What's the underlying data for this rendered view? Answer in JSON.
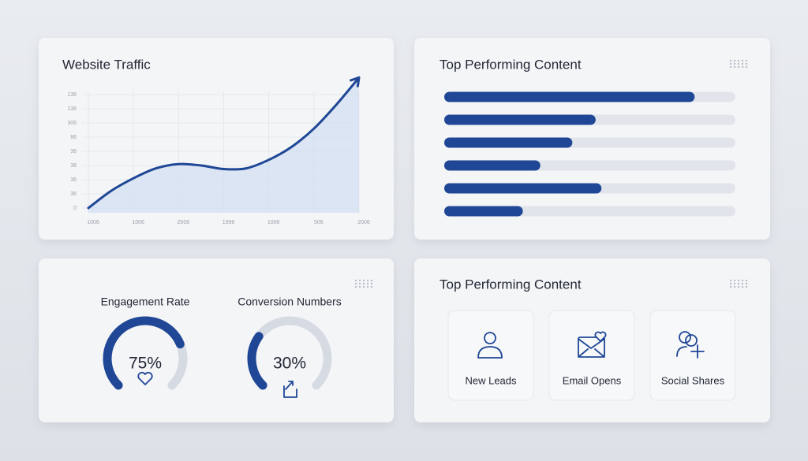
{
  "chart_data": [
    {
      "type": "line",
      "title": "Website Traffic",
      "x": [
        0,
        0.5,
        1,
        1.5,
        2,
        2.5,
        3,
        3.5,
        4,
        4.5,
        5,
        5.5,
        6
      ],
      "values": [
        0,
        1.2,
        2.1,
        2.8,
        3.1,
        3.0,
        2.75,
        2.8,
        3.4,
        4.3,
        5.6,
        7.3,
        9.2
      ],
      "color": "#1f4796",
      "xlim": [
        0,
        6
      ],
      "xticks": [
        {
          "value": 0,
          "label": "1006"
        },
        {
          "value": 1,
          "label": "1006"
        },
        {
          "value": 2,
          "label": "2006"
        },
        {
          "value": 3,
          "label": "1996"
        },
        {
          "value": 4,
          "label": "1006"
        },
        {
          "value": 5,
          "label": "506"
        },
        {
          "value": 6,
          "label": "2006"
        }
      ],
      "ylim": [
        0,
        8
      ],
      "yticks": [
        0,
        {
          "value": 1,
          "label": "36"
        },
        {
          "value": 2,
          "label": "36"
        },
        {
          "value": 3,
          "label": "36"
        },
        {
          "value": 4,
          "label": "36"
        },
        {
          "value": 5,
          "label": "86"
        },
        {
          "value": 6,
          "label": "306"
        },
        {
          "value": 7,
          "label": "136"
        },
        {
          "value": 8,
          "label": "136"
        }
      ],
      "grid": true
    },
    {
      "type": "hbar",
      "title": "Top Performing Content",
      "values": [
        86,
        52,
        44,
        33,
        54,
        27
      ],
      "xlim": [
        0,
        100
      ],
      "color": "#1f4796"
    },
    {
      "type": "gauge",
      "categories": [
        "Engagement Rate",
        "Conversion Numbers"
      ],
      "values": [
        75,
        30
      ],
      "value_labels": [
        "75%",
        "30%"
      ],
      "ylim": [
        0,
        100
      ],
      "color": "#1f4796"
    }
  ],
  "tiles_card": {
    "title": "Top Performing Content",
    "tiles": [
      "New Leads",
      "Email Opens",
      "Social Shares"
    ]
  }
}
